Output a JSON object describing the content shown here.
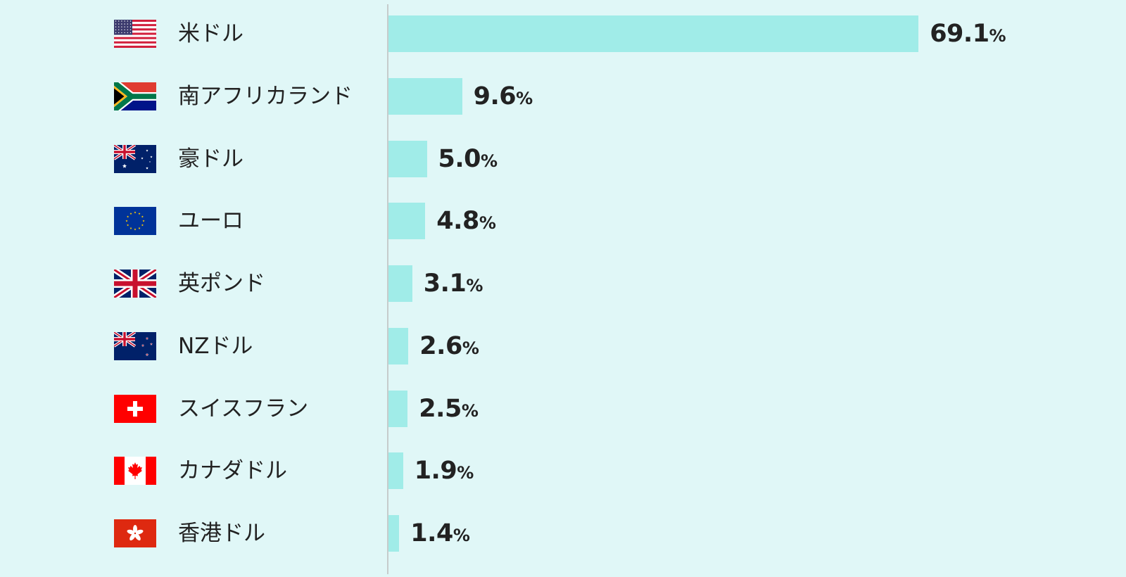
{
  "chart_data": {
    "type": "bar",
    "orientation": "horizontal",
    "categories": [
      "米ドル",
      "南アフリカランド",
      "豪ドル",
      "ユーロ",
      "英ポンド",
      "NZドル",
      "スイスフラン",
      "カナダドル",
      "香港ドル"
    ],
    "values": [
      69.1,
      9.6,
      5.0,
      4.8,
      3.1,
      2.6,
      2.5,
      1.9,
      1.4
    ],
    "value_labels": [
      "69.1",
      "9.6",
      "5.0",
      "4.8",
      "3.1",
      "2.6",
      "2.5",
      "1.9",
      "1.4"
    ],
    "unit": "%",
    "flags": [
      "us-flag-icon",
      "za-flag-icon",
      "au-flag-icon",
      "eu-flag-icon",
      "gb-flag-icon",
      "nz-flag-icon",
      "ch-flag-icon",
      "ca-flag-icon",
      "hk-flag-icon"
    ],
    "title": "",
    "xlabel": "",
    "ylabel": "",
    "grid": false,
    "legend": "none",
    "colors": {
      "bar": "#a0ece8",
      "background": "#e0f7f7",
      "axis": "#c6cccc",
      "text": "#222222"
    }
  }
}
